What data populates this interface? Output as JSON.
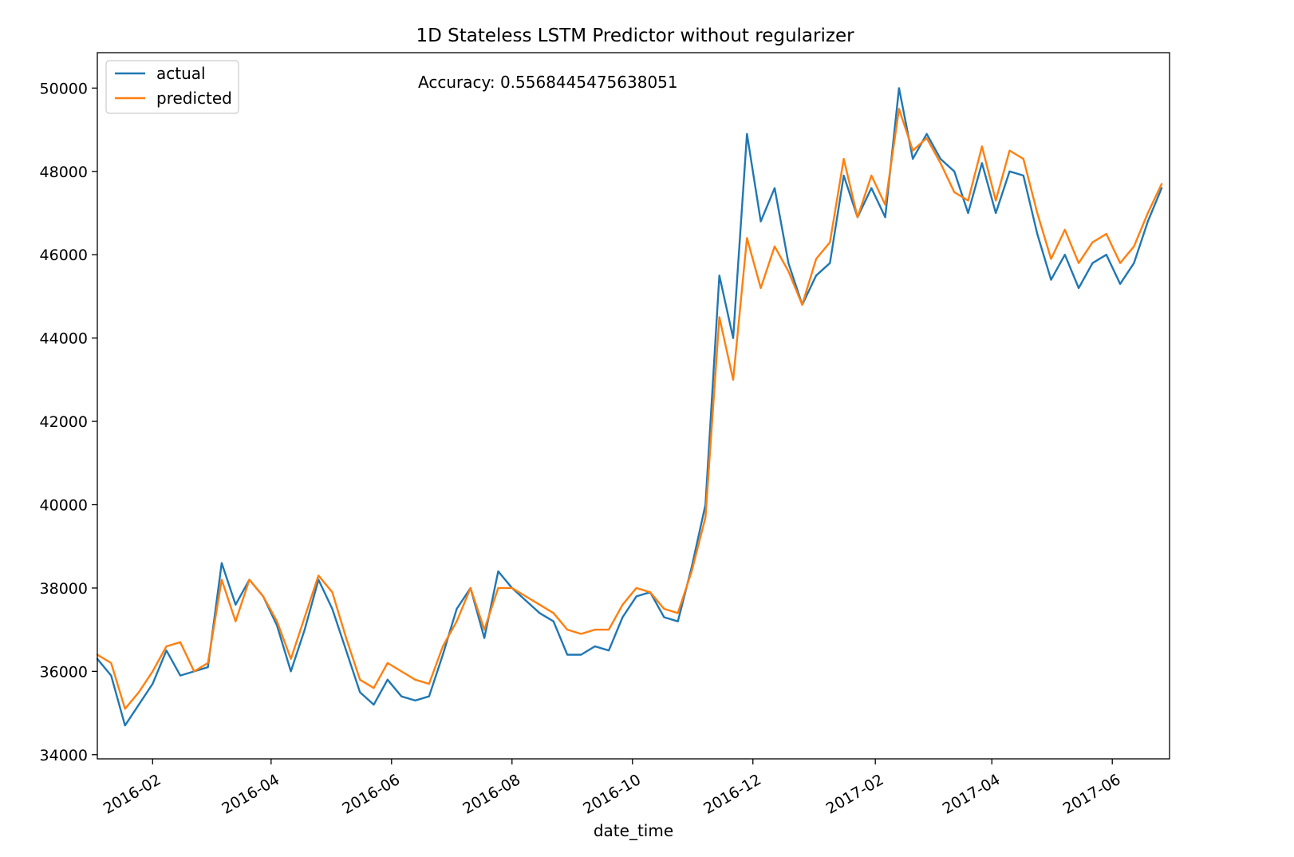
{
  "chart_data": {
    "type": "line",
    "title": "1D Stateless LSTM Predictor without regularizer",
    "xlabel": "date_time",
    "ylabel": "",
    "xlim": [
      "2016-01-04",
      "2017-06-30"
    ],
    "ylim": [
      33900,
      50850
    ],
    "x_ticks": [
      "2016-02",
      "2016-04",
      "2016-06",
      "2016-08",
      "2016-10",
      "2016-12",
      "2017-02",
      "2017-04",
      "2017-06"
    ],
    "y_ticks": [
      34000,
      36000,
      38000,
      40000,
      42000,
      44000,
      46000,
      48000,
      50000
    ],
    "grid": false,
    "legend_position": "upper-left",
    "annotation": "Accuracy: 0.5568445475638051",
    "colors": {
      "actual": "#1f77b4",
      "predicted": "#ff7f0e"
    },
    "x": [
      "2016-01-04",
      "2016-01-11",
      "2016-01-18",
      "2016-01-25",
      "2016-02-01",
      "2016-02-08",
      "2016-02-15",
      "2016-02-22",
      "2016-02-29",
      "2016-03-07",
      "2016-03-14",
      "2016-03-21",
      "2016-03-28",
      "2016-04-04",
      "2016-04-11",
      "2016-04-18",
      "2016-04-25",
      "2016-05-02",
      "2016-05-09",
      "2016-05-16",
      "2016-05-23",
      "2016-05-30",
      "2016-06-06",
      "2016-06-13",
      "2016-06-20",
      "2016-06-27",
      "2016-07-04",
      "2016-07-11",
      "2016-07-18",
      "2016-07-25",
      "2016-08-01",
      "2016-08-08",
      "2016-08-15",
      "2016-08-22",
      "2016-08-29",
      "2016-09-05",
      "2016-09-12",
      "2016-09-19",
      "2016-09-26",
      "2016-10-03",
      "2016-10-10",
      "2016-10-17",
      "2016-10-24",
      "2016-10-31",
      "2016-11-07",
      "2016-11-14",
      "2016-11-21",
      "2016-11-28",
      "2016-12-05",
      "2016-12-12",
      "2016-12-19",
      "2016-12-26",
      "2017-01-02",
      "2017-01-09",
      "2017-01-16",
      "2017-01-23",
      "2017-01-30",
      "2017-02-06",
      "2017-02-13",
      "2017-02-20",
      "2017-02-27",
      "2017-03-06",
      "2017-03-13",
      "2017-03-20",
      "2017-03-27",
      "2017-04-03",
      "2017-04-10",
      "2017-04-17",
      "2017-04-24",
      "2017-05-01",
      "2017-05-08",
      "2017-05-15",
      "2017-05-22",
      "2017-05-29",
      "2017-06-05",
      "2017-06-12",
      "2017-06-19",
      "2017-06-26"
    ],
    "series": [
      {
        "name": "actual",
        "values": [
          36300,
          35900,
          34700,
          35200,
          35700,
          36500,
          35900,
          36000,
          36100,
          38600,
          37600,
          38200,
          37800,
          37100,
          36000,
          37000,
          38200,
          37500,
          36500,
          35500,
          35200,
          35800,
          35400,
          35300,
          35400,
          36400,
          37500,
          38000,
          36800,
          38400,
          38000,
          37700,
          37400,
          37200,
          36400,
          36400,
          36600,
          36500,
          37300,
          37800,
          37900,
          37300,
          37200,
          38500,
          40000,
          45500,
          44000,
          48900,
          46800,
          47600,
          45800,
          44800,
          45500,
          45800,
          47900,
          46900,
          47600,
          46900,
          50000,
          48300,
          48900,
          48300,
          48000,
          47000,
          48200,
          47000,
          48000,
          47900,
          46500,
          45400,
          46000,
          45200,
          45800,
          46000,
          45300,
          45800,
          46800,
          47600
        ]
      },
      {
        "name": "predicted",
        "values": [
          36400,
          36200,
          35100,
          35500,
          36000,
          36600,
          36700,
          36000,
          36200,
          38200,
          37200,
          38200,
          37800,
          37200,
          36300,
          37300,
          38300,
          37900,
          36800,
          35800,
          35600,
          36200,
          36000,
          35800,
          35700,
          36600,
          37200,
          38000,
          37000,
          38000,
          38000,
          37800,
          37600,
          37400,
          37000,
          36900,
          37000,
          37000,
          37600,
          38000,
          37900,
          37500,
          37400,
          38400,
          39700,
          44500,
          43000,
          46400,
          45200,
          46200,
          45600,
          44800,
          45900,
          46300,
          48300,
          46900,
          47900,
          47200,
          49500,
          48500,
          48800,
          48200,
          47500,
          47300,
          48600,
          47300,
          48500,
          48300,
          47000,
          45900,
          46600,
          45800,
          46300,
          46500,
          45800,
          46200,
          47000,
          47700
        ]
      }
    ]
  }
}
